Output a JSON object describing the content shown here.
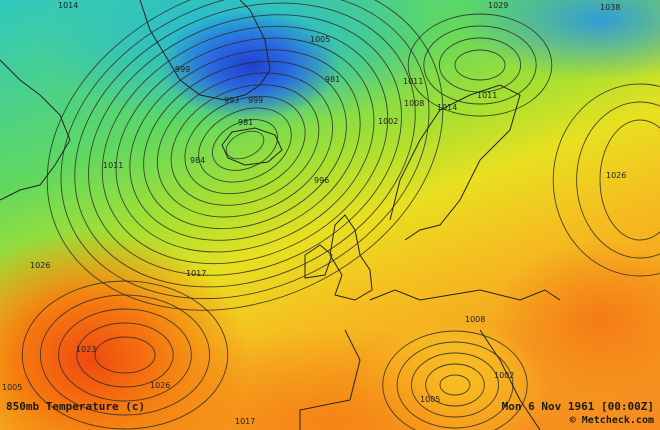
{
  "map": {
    "title": "850mb Temperature (c)",
    "timestamp": "Mon 6 Nov 1961 [00:00Z]",
    "credit": "© Metcheck.com",
    "colors": {
      "cold": "#1f3fd0",
      "cool": "#30c8c0",
      "mild": "#a8e030",
      "warm": "#e8e020",
      "hot": "#f04a10"
    },
    "isobar_labels": [
      "999",
      "993",
      "999",
      "981",
      "984",
      "981",
      "1005",
      "1011",
      "1017",
      "1026",
      "1023",
      "1026",
      "996",
      "1002",
      "1008",
      "1011",
      "1014",
      "1011",
      "1026",
      "1029",
      "1038",
      "1008",
      "1005",
      "1002",
      "1014",
      "1005",
      "1017"
    ]
  }
}
